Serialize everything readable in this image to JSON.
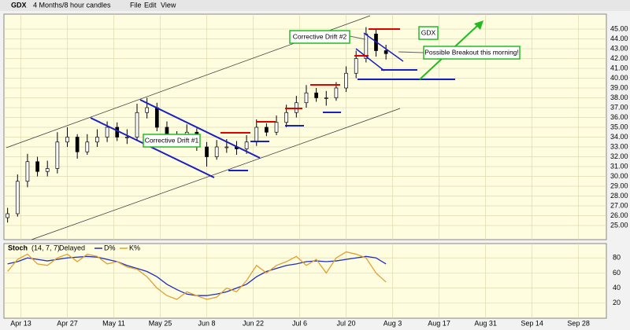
{
  "header": {
    "symbol": "GDX",
    "interval": "4 Months/8 hour candles",
    "menu": [
      "File",
      "Edit",
      "View"
    ]
  },
  "annotations": {
    "drift1": "Corrective Drift #1",
    "drift2": "Corrective Drift #2",
    "ticker": "GDX",
    "breakout": "Possible Breakout this morning!"
  },
  "chart_data": [
    {
      "type": "candlestick",
      "up_color": "#ffffff",
      "down_color": "#000000",
      "grid": true,
      "x": [
        -4,
        -1,
        2,
        5,
        8,
        11,
        14,
        17,
        20,
        23,
        26,
        29,
        32,
        35,
        38,
        41,
        44,
        47,
        50,
        53,
        56,
        59,
        62,
        65,
        68,
        71,
        74,
        77,
        80,
        83,
        86,
        89,
        92,
        95,
        98,
        101,
        104,
        107,
        110
      ],
      "open": [
        25.8,
        26.2,
        29.5,
        31.5,
        30.5,
        30.8,
        33.5,
        34,
        32.5,
        33.5,
        34,
        35,
        34,
        34,
        36.5,
        37,
        35,
        34,
        33.5,
        34.5,
        33,
        32,
        33,
        33,
        32.8,
        33.5,
        35,
        34.5,
        35.5,
        36.5,
        37.5,
        38.5,
        38,
        38,
        39,
        40.5,
        42,
        44.5,
        42.8
      ],
      "close": [
        26.2,
        29.5,
        31.5,
        30.5,
        30.8,
        33.5,
        34,
        32.5,
        33.5,
        34,
        35,
        34,
        34,
        36.5,
        37,
        35,
        34,
        33.5,
        34.5,
        33,
        32,
        33,
        33,
        32.8,
        33.5,
        35,
        34.5,
        35.5,
        36.5,
        37.5,
        38.5,
        38,
        38,
        39,
        40.5,
        42,
        44.5,
        42.8,
        42.5
      ],
      "high": [
        26.8,
        30.2,
        32.3,
        32,
        31.6,
        34.5,
        35,
        34.3,
        34.3,
        34.8,
        35.6,
        35.5,
        34.8,
        37.4,
        38,
        37.5,
        35.6,
        34.6,
        35.3,
        34.9,
        33.5,
        33.7,
        33.8,
        33.6,
        34.2,
        35.8,
        35.4,
        36.2,
        37.3,
        38.2,
        39.3,
        39,
        38.7,
        39.6,
        41.2,
        42.8,
        45.2,
        45,
        43.4
      ],
      "low": [
        25.3,
        25.9,
        28.9,
        30,
        30,
        30.3,
        33,
        31.8,
        32.2,
        33,
        33.5,
        33.6,
        33.3,
        33.6,
        35.9,
        34.6,
        33.5,
        33,
        33.1,
        32.6,
        31,
        31.7,
        32.4,
        32.2,
        32.3,
        33.1,
        34.1,
        34.2,
        35,
        36,
        37,
        37.6,
        37.2,
        37.7,
        38.6,
        40,
        41.6,
        42.2,
        41.9
      ],
      "xlim": [
        -5.1,
        176.4
      ],
      "ylim": [
        23.56,
        46.52
      ],
      "xticks": [
        {
          "value": 0,
          "label": "Apr 13"
        },
        {
          "value": 14,
          "label": "Apr 27"
        },
        {
          "value": 28,
          "label": "May 11"
        },
        {
          "value": 42,
          "label": "May 25"
        },
        {
          "value": 56,
          "label": "Jun 8"
        },
        {
          "value": 70,
          "label": "Jun 22"
        },
        {
          "value": 84,
          "label": "Jul 6"
        },
        {
          "value": 98,
          "label": "Jul 20"
        },
        {
          "value": 112,
          "label": "Aug 3"
        },
        {
          "value": 126,
          "label": "Aug 17"
        },
        {
          "value": 140,
          "label": "Aug 31"
        },
        {
          "value": 154,
          "label": "Sep 14"
        },
        {
          "value": 168,
          "label": "Sep 28"
        }
      ],
      "yticks": [
        {
          "value": 25,
          "label": "25.00"
        },
        {
          "value": 26,
          "label": "26.00"
        },
        {
          "value": 27,
          "label": "27.00"
        },
        {
          "value": 28,
          "label": "28.00"
        },
        {
          "value": 29,
          "label": "29.00"
        },
        {
          "value": 30,
          "label": "30.00"
        },
        {
          "value": 31,
          "label": "31.00"
        },
        {
          "value": 32,
          "label": "32.00"
        },
        {
          "value": 33,
          "label": "33.00"
        },
        {
          "value": 34,
          "label": "34.00"
        },
        {
          "value": 35,
          "label": "35.00"
        },
        {
          "value": 36,
          "label": "36.00"
        },
        {
          "value": 37,
          "label": "37.00"
        },
        {
          "value": 38,
          "label": "38.00"
        },
        {
          "value": 39,
          "label": "39.00"
        },
        {
          "value": 40,
          "label": "40.00"
        },
        {
          "value": 41,
          "label": "41.00"
        },
        {
          "value": 42,
          "label": "42.00"
        },
        {
          "value": 43,
          "label": "43.00"
        },
        {
          "value": 44,
          "label": "44.00"
        },
        {
          "value": 45,
          "label": "45.00"
        }
      ]
    },
    {
      "type": "line",
      "title": "Stoch",
      "params": "(14, 7, 7)",
      "mode": "Delayed",
      "grid": true,
      "x": [
        -4,
        -1,
        2,
        5,
        8,
        11,
        14,
        17,
        20,
        23,
        26,
        29,
        32,
        35,
        38,
        41,
        44,
        47,
        50,
        53,
        56,
        59,
        62,
        65,
        68,
        71,
        74,
        77,
        80,
        83,
        86,
        89,
        92,
        95,
        98,
        101,
        104,
        107,
        110
      ],
      "series": [
        {
          "name": "D%",
          "color": "#1f2fbf",
          "values": [
            72,
            75,
            80,
            78,
            76,
            78,
            80,
            81,
            82,
            81,
            78,
            75,
            70,
            66,
            62,
            55,
            45,
            38,
            32,
            30,
            30,
            32,
            35,
            40,
            45,
            55,
            62,
            66,
            70,
            72,
            75,
            76,
            75,
            76,
            78,
            80,
            82,
            80,
            72
          ]
        },
        {
          "name": "K%",
          "color": "#e0a030",
          "values": [
            62,
            78,
            85,
            72,
            70,
            80,
            85,
            75,
            85,
            82,
            72,
            75,
            68,
            65,
            55,
            40,
            30,
            25,
            35,
            30,
            25,
            28,
            40,
            35,
            50,
            70,
            60,
            70,
            75,
            82,
            70,
            78,
            60,
            80,
            88,
            85,
            80,
            60,
            48
          ]
        }
      ],
      "ylim": [
        0,
        99
      ],
      "yticks": [
        20,
        40,
        60,
        80
      ]
    }
  ]
}
